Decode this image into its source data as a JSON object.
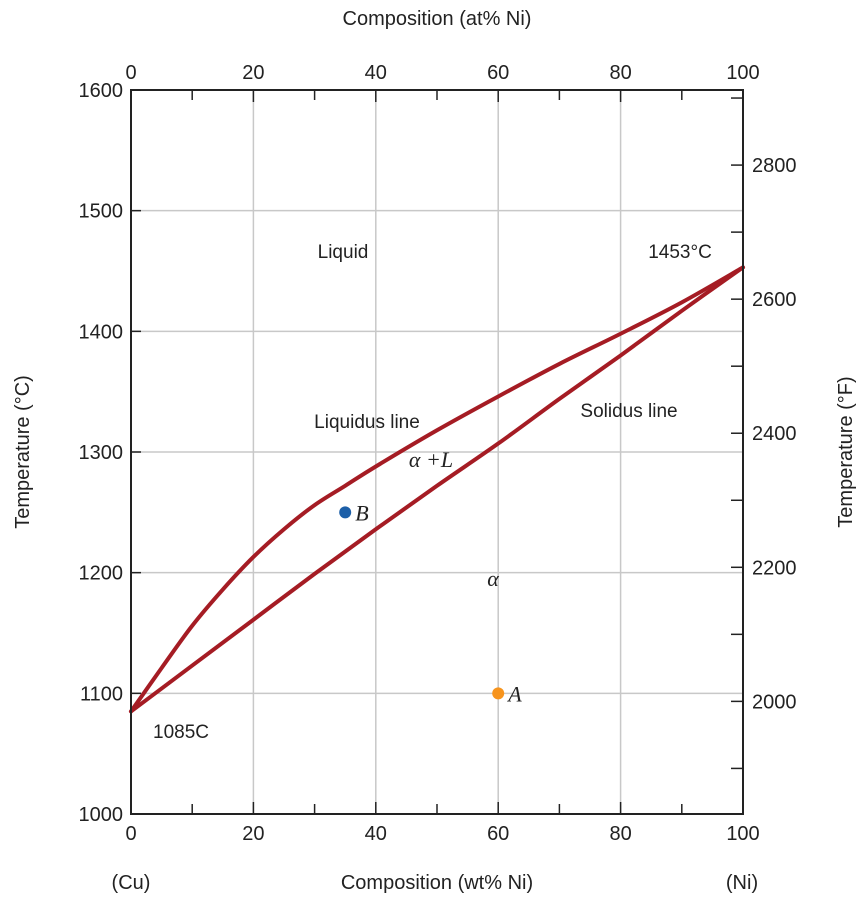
{
  "chart_data": {
    "type": "line",
    "title": "",
    "top_axis": {
      "label": "Composition (at% Ni)",
      "ticks": [
        "0",
        "20",
        "40",
        "60",
        "80",
        "100"
      ]
    },
    "x_axis": {
      "label": "Composition (wt% Ni)",
      "ticks": [
        "0",
        "20",
        "40",
        "60",
        "80",
        "100"
      ],
      "xlim": [
        0,
        100
      ],
      "left_end_label": "(Cu)",
      "right_end_label": "(Ni)"
    },
    "y_axis": {
      "label": "Temperature (°C)",
      "ticks": [
        "1000",
        "1100",
        "1200",
        "1300",
        "1400",
        "1500",
        "1600"
      ],
      "ylim": [
        1000,
        1600
      ]
    },
    "y2_axis": {
      "label": "Temperature (°F)",
      "ticks": [
        "2000",
        "2200",
        "2400",
        "2600",
        "2800"
      ],
      "values_F": [
        2000,
        2200,
        2400,
        2600,
        2800
      ]
    },
    "grid": true,
    "line_color": "#a51c24",
    "series": [
      {
        "name": "Liquidus line",
        "x": [
          0,
          5,
          10,
          15,
          20,
          25,
          30,
          35,
          40,
          50,
          60,
          70,
          80,
          90,
          100
        ],
        "y": [
          1085,
          1121,
          1156,
          1186,
          1213,
          1236,
          1256,
          1272,
          1288,
          1318,
          1346,
          1373,
          1398,
          1424,
          1453
        ]
      },
      {
        "name": "Solidus line",
        "x": [
          0,
          10,
          20,
          30,
          40,
          50,
          60,
          70,
          80,
          90,
          100
        ],
        "y": [
          1085,
          1123,
          1161,
          1199,
          1236,
          1272,
          1307,
          1344,
          1380,
          1417,
          1453
        ]
      }
    ],
    "points": [
      {
        "label": "A",
        "x": 60,
        "y": 1100,
        "color": "#f7941d"
      },
      {
        "label": "B",
        "x": 35,
        "y": 1250,
        "color": "#1c5fa8"
      }
    ],
    "annotations": {
      "liquid": "Liquid",
      "melt_ni": "1453°C",
      "melt_cu": "1085C",
      "liquidus": "Liquidus line",
      "solidus": "Solidus line",
      "two_phase": "α +L",
      "alpha": "α"
    }
  }
}
